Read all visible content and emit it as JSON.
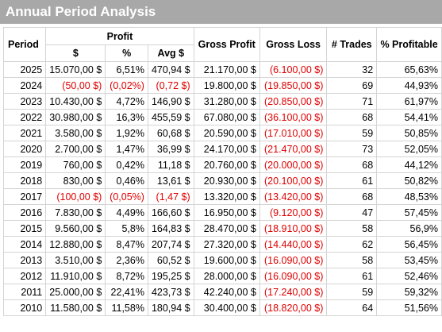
{
  "title": "Annual Period Analysis",
  "colors": {
    "title_bg": "#a8a8a8",
    "negative": "#e00000",
    "grid": "#d4d4d4"
  },
  "headers": {
    "period": "Period",
    "profit_group": "Profit",
    "profit_dollar": "$",
    "profit_pct": "%",
    "avg": "Avg $",
    "gross_profit": "Gross Profit",
    "gross_loss": "Gross Loss",
    "trades": "# Trades",
    "pct_profitable": "% Profitable"
  },
  "rows": [
    {
      "period": "2025",
      "profit": "15.070,00 $",
      "pct": "6,51%",
      "avg": "470,94 $",
      "gross_profit": "21.170,00 $",
      "gross_loss": "(6.100,00 $)",
      "trades": "32",
      "profitable": "65,63%",
      "neg": false
    },
    {
      "period": "2024",
      "profit": "(50,00 $)",
      "pct": "(0,02%)",
      "avg": "(0,72 $)",
      "gross_profit": "19.800,00 $",
      "gross_loss": "(19.850,00 $)",
      "trades": "69",
      "profitable": "44,93%",
      "neg": true
    },
    {
      "period": "2023",
      "profit": "10.430,00 $",
      "pct": "4,72%",
      "avg": "146,90 $",
      "gross_profit": "31.280,00 $",
      "gross_loss": "(20.850,00 $)",
      "trades": "71",
      "profitable": "61,97%",
      "neg": false
    },
    {
      "period": "2022",
      "profit": "30.980,00 $",
      "pct": "16,3%",
      "avg": "455,59 $",
      "gross_profit": "67.080,00 $",
      "gross_loss": "(36.100,00 $)",
      "trades": "68",
      "profitable": "54,41%",
      "neg": false
    },
    {
      "period": "2021",
      "profit": "3.580,00 $",
      "pct": "1,92%",
      "avg": "60,68 $",
      "gross_profit": "20.590,00 $",
      "gross_loss": "(17.010,00 $)",
      "trades": "59",
      "profitable": "50,85%",
      "neg": false
    },
    {
      "period": "2020",
      "profit": "2.700,00 $",
      "pct": "1,47%",
      "avg": "36,99 $",
      "gross_profit": "24.170,00 $",
      "gross_loss": "(21.470,00 $)",
      "trades": "73",
      "profitable": "52,05%",
      "neg": false
    },
    {
      "period": "2019",
      "profit": "760,00 $",
      "pct": "0,42%",
      "avg": "11,18 $",
      "gross_profit": "20.760,00 $",
      "gross_loss": "(20.000,00 $)",
      "trades": "68",
      "profitable": "44,12%",
      "neg": false
    },
    {
      "period": "2018",
      "profit": "830,00 $",
      "pct": "0,46%",
      "avg": "13,61 $",
      "gross_profit": "20.930,00 $",
      "gross_loss": "(20.100,00 $)",
      "trades": "61",
      "profitable": "50,82%",
      "neg": false
    },
    {
      "period": "2017",
      "profit": "(100,00 $)",
      "pct": "(0,05%)",
      "avg": "(1,47 $)",
      "gross_profit": "13.320,00 $",
      "gross_loss": "(13.420,00 $)",
      "trades": "68",
      "profitable": "48,53%",
      "neg": true
    },
    {
      "period": "2016",
      "profit": "7.830,00 $",
      "pct": "4,49%",
      "avg": "166,60 $",
      "gross_profit": "16.950,00 $",
      "gross_loss": "(9.120,00 $)",
      "trades": "47",
      "profitable": "57,45%",
      "neg": false
    },
    {
      "period": "2015",
      "profit": "9.560,00 $",
      "pct": "5,8%",
      "avg": "164,83 $",
      "gross_profit": "28.470,00 $",
      "gross_loss": "(18.910,00 $)",
      "trades": "58",
      "profitable": "56,9%",
      "neg": false
    },
    {
      "period": "2014",
      "profit": "12.880,00 $",
      "pct": "8,47%",
      "avg": "207,74 $",
      "gross_profit": "27.320,00 $",
      "gross_loss": "(14.440,00 $)",
      "trades": "62",
      "profitable": "56,45%",
      "neg": false
    },
    {
      "period": "2013",
      "profit": "3.510,00 $",
      "pct": "2,36%",
      "avg": "60,52 $",
      "gross_profit": "19.600,00 $",
      "gross_loss": "(16.090,00 $)",
      "trades": "58",
      "profitable": "53,45%",
      "neg": false
    },
    {
      "period": "2012",
      "profit": "11.910,00 $",
      "pct": "8,72%",
      "avg": "195,25 $",
      "gross_profit": "28.000,00 $",
      "gross_loss": "(16.090,00 $)",
      "trades": "61",
      "profitable": "52,46%",
      "neg": false
    },
    {
      "period": "2011",
      "profit": "25.000,00 $",
      "pct": "22,41%",
      "avg": "423,73 $",
      "gross_profit": "42.240,00 $",
      "gross_loss": "(17.240,00 $)",
      "trades": "59",
      "profitable": "59,32%",
      "neg": false
    },
    {
      "period": "2010",
      "profit": "11.580,00 $",
      "pct": "11,58%",
      "avg": "180,94 $",
      "gross_profit": "30.400,00 $",
      "gross_loss": "(18.820,00 $)",
      "trades": "64",
      "profitable": "51,56%",
      "neg": false
    }
  ]
}
